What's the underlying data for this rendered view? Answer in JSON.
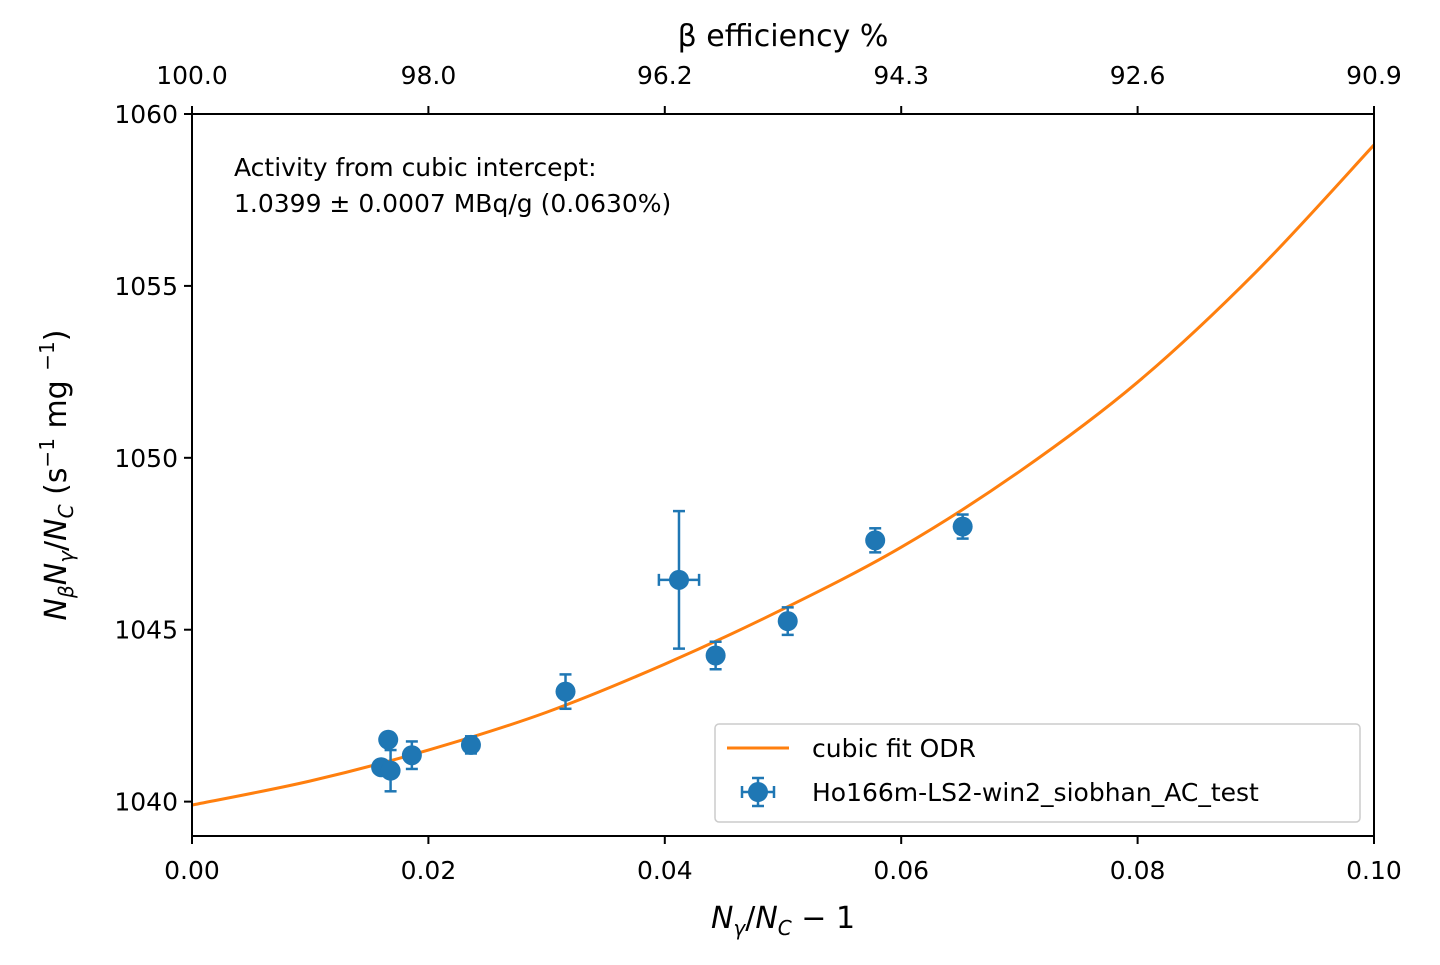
{
  "chart_data": {
    "type": "scatter",
    "xlabel": "N_γ/N_C − 1",
    "ylabel": "N_β N_γ/N_C (s⁻¹ mg ⁻¹)",
    "top_xlabel": "β efficiency %",
    "xlim": [
      0.0,
      0.1
    ],
    "ylim": [
      1039.0,
      1060.0
    ],
    "x_ticks": [
      "0.00",
      "0.02",
      "0.04",
      "0.06",
      "0.08",
      "0.10"
    ],
    "x_tick_values": [
      0.0,
      0.02,
      0.04,
      0.06,
      0.08,
      0.1
    ],
    "y_ticks": [
      "1040",
      "1045",
      "1050",
      "1055",
      "1060"
    ],
    "y_tick_values": [
      1040,
      1045,
      1050,
      1055,
      1060
    ],
    "top_x_ticks": [
      "100.0",
      "98.0",
      "96.2",
      "94.3",
      "92.6",
      "90.9"
    ],
    "grid": false,
    "legend_position": "lower right",
    "annotation": [
      "Activity from cubic intercept:",
      "1.0399 ± 0.0007 MBq/g (0.0630%)"
    ],
    "fit": {
      "name": "cubic fit ODR",
      "color": "#ff7f0e",
      "x": [
        0.0,
        0.01,
        0.02,
        0.03,
        0.04,
        0.05,
        0.06,
        0.07,
        0.08,
        0.09,
        0.1
      ],
      "y": [
        1039.9,
        1040.6,
        1041.5,
        1042.6,
        1044.0,
        1045.6,
        1047.4,
        1049.6,
        1052.2,
        1055.4,
        1059.1
      ]
    },
    "series": [
      {
        "name": "Ho166m-LS2-win2_siobhan_AC_test",
        "color": "#1f77b4",
        "points": [
          {
            "x": 0.016,
            "y": 1041.0,
            "yerr": 0.0,
            "xerr": 0.0
          },
          {
            "x": 0.0166,
            "y": 1041.8,
            "yerr": 0.0,
            "xerr": 0.0
          },
          {
            "x": 0.0168,
            "y": 1040.9,
            "yerr": 0.6,
            "xerr": 0.0
          },
          {
            "x": 0.0186,
            "y": 1041.35,
            "yerr": 0.4,
            "xerr": 0.0
          },
          {
            "x": 0.0236,
            "y": 1041.65,
            "yerr": 0.25,
            "xerr": 0.0
          },
          {
            "x": 0.0316,
            "y": 1043.2,
            "yerr": 0.5,
            "xerr": 0.0
          },
          {
            "x": 0.0412,
            "y": 1046.45,
            "yerr": 2.0,
            "xerr": 0.0017
          },
          {
            "x": 0.0443,
            "y": 1044.25,
            "yerr": 0.4,
            "xerr": 0.0
          },
          {
            "x": 0.0504,
            "y": 1045.25,
            "yerr": 0.4,
            "xerr": 0.0
          },
          {
            "x": 0.0578,
            "y": 1047.6,
            "yerr": 0.35,
            "xerr": 0.0
          },
          {
            "x": 0.0652,
            "y": 1048.0,
            "yerr": 0.35,
            "xerr": 0.0
          }
        ]
      }
    ]
  }
}
